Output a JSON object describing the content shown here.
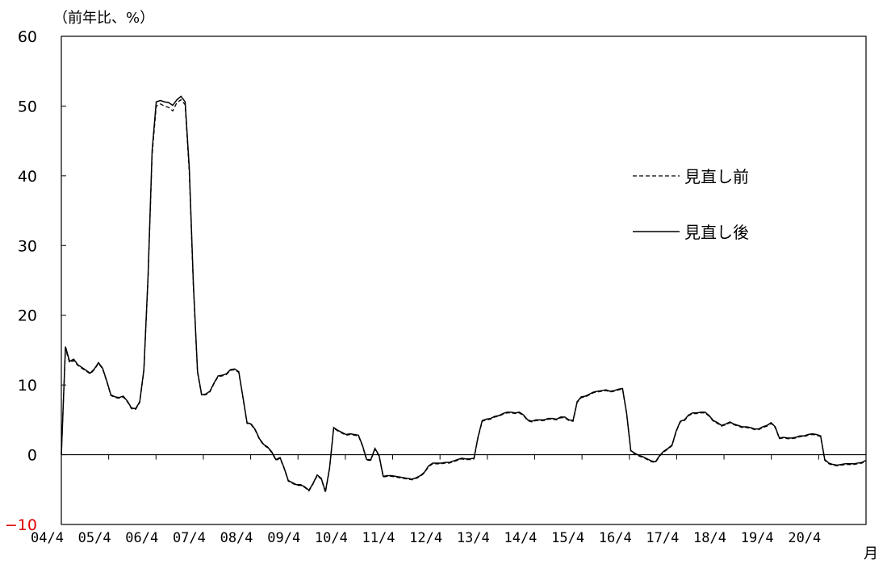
{
  "chart_data": {
    "type": "line",
    "unit_label": "（前年比、%）",
    "x_axis_unit": "月",
    "ylim": [
      -10,
      60
    ],
    "y_ticks": [
      "60",
      "50",
      "40",
      "30",
      "20",
      "10",
      "0",
      "−10"
    ],
    "x_ticks": [
      "04/4",
      "05/4",
      "06/4",
      "07/4",
      "08/4",
      "09/4",
      "10/4",
      "11/4",
      "12/4",
      "13/4",
      "14/4",
      "15/4",
      "16/4",
      "17/4",
      "18/4",
      "19/4",
      "20/4"
    ],
    "x_start": "04/4",
    "x_end": "21/3",
    "legend_position": "right",
    "grid": false,
    "colors": {
      "negative_tick": "#e00000",
      "line": "#000000"
    },
    "series": [
      {
        "name": "見直し前",
        "style": "dashed",
        "values": [
          0,
          15.2,
          13.2,
          13.5,
          12.8,
          12.4,
          12,
          11.6,
          12.2,
          13.1,
          12.3,
          10.5,
          8.5,
          8.2,
          8.1,
          8.3,
          7.6,
          6.6,
          6.5,
          7.5,
          12,
          25,
          43,
          50,
          50.3,
          50,
          49.8,
          49.3,
          50.5,
          50.9,
          50.2,
          40.5,
          24,
          11.8,
          8.5,
          8.6,
          9,
          10.2,
          11.2,
          11.3,
          11.5,
          12.1,
          12.2,
          11.8,
          8.2,
          4.5,
          4.3,
          3.5,
          2.2,
          1.4,
          1,
          0.3,
          -0.8,
          -0.5,
          -2,
          -3.8,
          -4.1,
          -4.4,
          -4.4,
          -4.7,
          -5.2,
          -4.2,
          -3,
          -3.5,
          -5.4,
          -2,
          3.8,
          3.4,
          3.1,
          2.8,
          2.9,
          2.8,
          2.7,
          1.2,
          -0.8,
          -0.8,
          0.8,
          -0.2,
          -3.2,
          -3.1,
          -3.1,
          -3.2,
          -3.3,
          -3.4,
          -3.5,
          -3.6,
          -3.4,
          -3.1,
          -2.6,
          -1.7,
          -1.3,
          -1.3,
          -1.3,
          -1.2,
          -1.2,
          -1,
          -0.8,
          -0.6,
          -0.7,
          -0.7,
          -0.6,
          2.5,
          4.8,
          5,
          5.1,
          5.4,
          5.5,
          5.8,
          6,
          6,
          5.9,
          6,
          5.6,
          4.9,
          4.7,
          4.9,
          4.9,
          4.9,
          5.1,
          5.1,
          5,
          5.3,
          5.3,
          4.9,
          4.8,
          7.5,
          8.2,
          8.3,
          8.6,
          8.9,
          9,
          9.1,
          9.2,
          9,
          9.1,
          9.3,
          9.4,
          5.8,
          0.5,
          0.1,
          -0.2,
          -0.4,
          -0.7,
          -1,
          -1.1,
          -0.2,
          0.4,
          0.8,
          1.3,
          3.3,
          4.7,
          4.9,
          5.6,
          5.9,
          5.9,
          6,
          6,
          5.5,
          4.8,
          4.5,
          4.1,
          4.3,
          4.6,
          4.3,
          4.1,
          3.9,
          3.9,
          3.8,
          3.6,
          3.6,
          3.9,
          4.1,
          4.5,
          3.9,
          2.3,
          2.4,
          2.3,
          2.3,
          2.4,
          2.6,
          2.6,
          2.8,
          2.9,
          2.8,
          2.6,
          -0.8,
          -1.3,
          -1.5,
          -1.6,
          -1.5,
          -1.4,
          -1.4,
          -1.4,
          -1.3,
          -1.2,
          -0.9
        ]
      },
      {
        "name": "見直し後",
        "style": "solid",
        "values": [
          0,
          15.5,
          13.4,
          13.7,
          12.9,
          12.5,
          12.1,
          11.7,
          12.3,
          13.2,
          12.4,
          10.6,
          8.6,
          8.3,
          8.2,
          8.4,
          7.7,
          6.7,
          6.6,
          7.6,
          12.2,
          25.4,
          43.6,
          50.6,
          50.8,
          50.6,
          50.5,
          50.1,
          50.9,
          51.4,
          50.6,
          41.2,
          24.5,
          12,
          8.6,
          8.7,
          9.1,
          10.3,
          11.3,
          11.4,
          11.6,
          12.2,
          12.3,
          11.9,
          8.3,
          4.6,
          4.4,
          3.6,
          2.3,
          1.5,
          1.1,
          0.4,
          -0.7,
          -0.4,
          -1.9,
          -3.7,
          -4,
          -4.3,
          -4.3,
          -4.6,
          -5.1,
          -4.1,
          -2.9,
          -3.4,
          -5.3,
          -1.9,
          3.9,
          3.5,
          3.2,
          2.9,
          3,
          2.9,
          2.8,
          1.3,
          -0.7,
          -0.7,
          0.9,
          -0.1,
          -3.1,
          -3,
          -3,
          -3.1,
          -3.2,
          -3.3,
          -3.4,
          -3.5,
          -3.3,
          -3,
          -2.5,
          -1.6,
          -1.2,
          -1.2,
          -1.2,
          -1.1,
          -1.1,
          -0.9,
          -0.7,
          -0.5,
          -0.6,
          -0.6,
          -0.5,
          2.6,
          4.9,
          5.1,
          5.2,
          5.5,
          5.6,
          5.9,
          6.1,
          6.1,
          6,
          6.1,
          5.7,
          5,
          4.8,
          5,
          5,
          5,
          5.2,
          5.2,
          5.1,
          5.4,
          5.4,
          5,
          4.9,
          7.6,
          8.3,
          8.4,
          8.7,
          9,
          9.1,
          9.2,
          9.3,
          9.1,
          9.2,
          9.4,
          9.5,
          5.9,
          0.6,
          0.2,
          -0.1,
          -0.3,
          -0.6,
          -0.9,
          -1,
          -0.1,
          0.5,
          0.9,
          1.4,
          3.4,
          4.8,
          5,
          5.7,
          6,
          6,
          6.1,
          6.1,
          5.6,
          4.9,
          4.6,
          4.2,
          4.4,
          4.7,
          4.4,
          4.2,
          4,
          4,
          3.9,
          3.7,
          3.7,
          4,
          4.2,
          4.6,
          4,
          2.4,
          2.5,
          2.4,
          2.4,
          2.5,
          2.7,
          2.7,
          2.9,
          3,
          2.9,
          2.7,
          -0.7,
          -1.2,
          -1.4,
          -1.5,
          -1.4,
          -1.3,
          -1.3,
          -1.3,
          -1.2,
          -1.1,
          -0.8
        ]
      }
    ]
  }
}
